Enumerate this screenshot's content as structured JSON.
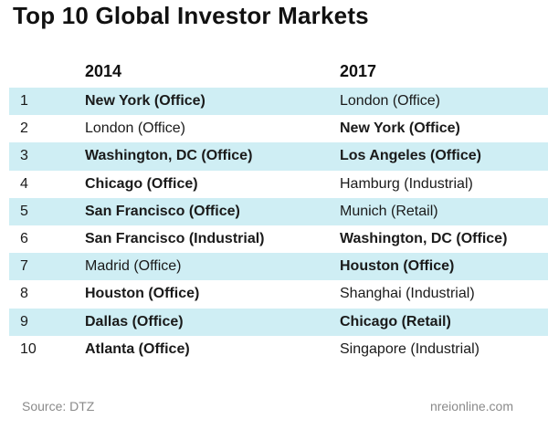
{
  "title": "Top 10 Global Investor Markets",
  "columns": {
    "year1": "2014",
    "year2": "2017"
  },
  "rows": [
    {
      "rank": "1",
      "y2014": "New York (Office)",
      "y2017": "London (Office)",
      "bold2014": true,
      "bold2017": false
    },
    {
      "rank": "2",
      "y2014": "London (Office)",
      "y2017": "New York (Office)",
      "bold2014": false,
      "bold2017": true
    },
    {
      "rank": "3",
      "y2014": "Washington, DC (Office)",
      "y2017": "Los Angeles (Office)",
      "bold2014": true,
      "bold2017": true
    },
    {
      "rank": "4",
      "y2014": "Chicago (Office)",
      "y2017": "Hamburg (Industrial)",
      "bold2014": true,
      "bold2017": false
    },
    {
      "rank": "5",
      "y2014": "San Francisco (Office)",
      "y2017": "Munich (Retail)",
      "bold2014": true,
      "bold2017": false
    },
    {
      "rank": "6",
      "y2014": "San Francisco (Industrial)",
      "y2017": "Washington, DC (Office)",
      "bold2014": true,
      "bold2017": true
    },
    {
      "rank": "7",
      "y2014": "Madrid (Office)",
      "y2017": "Houston (Office)",
      "bold2014": false,
      "bold2017": true
    },
    {
      "rank": "8",
      "y2014": "Houston (Office)",
      "y2017": "Shanghai (Industrial)",
      "bold2014": true,
      "bold2017": false
    },
    {
      "rank": "9",
      "y2014": "Dallas (Office)",
      "y2017": "Chicago (Retail)",
      "bold2014": true,
      "bold2017": true
    },
    {
      "rank": "10",
      "y2014": "Atlanta (Office)",
      "y2017": "Singapore (Industrial)",
      "bold2014": true,
      "bold2017": false
    }
  ],
  "footer": {
    "source": "Source: DTZ",
    "site": "nreionline.com"
  },
  "colors": {
    "row_shade": "#cfeef4",
    "footer_text": "#8a8a8a"
  }
}
